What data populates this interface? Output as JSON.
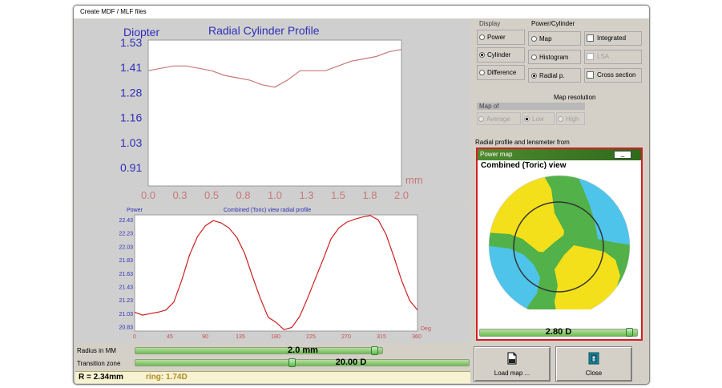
{
  "window": {
    "title": "Create MDF / MLF files"
  },
  "top_chart": {
    "ylabel": "Diopter",
    "title": "Radial Cylinder Profile",
    "xunit": "mm",
    "yticks": [
      "1.53",
      "1.41",
      "1.28",
      "1.16",
      "1.03",
      "0.91"
    ],
    "xticks": [
      "0.0",
      "0.3",
      "0.5",
      "0.8",
      "1.0",
      "1.3",
      "1.5",
      "1.8",
      "2.0"
    ]
  },
  "bottom_chart": {
    "ylabel": "Power",
    "title": "Combined (Toric) view radial profile",
    "xunit": "Deg",
    "yticks": [
      "22.43",
      "22.23",
      "22.03",
      "21.83",
      "21.63",
      "21.43",
      "21.23",
      "21.03",
      "20.83"
    ],
    "xticks": [
      "0",
      "45",
      "90",
      "135",
      "180",
      "225",
      "270",
      "315",
      "360"
    ]
  },
  "chart_data": [
    {
      "type": "line",
      "title": "Radial Cylinder Profile",
      "xlabel": "mm",
      "ylabel": "Diopter",
      "xlim": [
        0.0,
        2.0
      ],
      "ylim": [
        0.91,
        1.53
      ],
      "x": [
        0.0,
        0.1,
        0.2,
        0.3,
        0.4,
        0.5,
        0.6,
        0.7,
        0.8,
        0.9,
        1.0,
        1.1,
        1.2,
        1.3,
        1.4,
        1.5,
        1.6,
        1.7,
        1.8,
        1.9,
        2.0
      ],
      "values": [
        1.4,
        1.41,
        1.42,
        1.42,
        1.41,
        1.4,
        1.38,
        1.37,
        1.36,
        1.34,
        1.33,
        1.36,
        1.4,
        1.4,
        1.4,
        1.42,
        1.44,
        1.45,
        1.46,
        1.48,
        1.49
      ],
      "line_color": "#c87878"
    },
    {
      "type": "line",
      "title": "Combined (Toric) view radial profile",
      "xlabel": "Deg",
      "ylabel": "Power",
      "xlim": [
        0,
        360
      ],
      "ylim": [
        20.83,
        22.43
      ],
      "x": [
        0,
        10,
        20,
        30,
        40,
        50,
        60,
        70,
        80,
        90,
        100,
        110,
        120,
        130,
        140,
        150,
        160,
        170,
        180,
        190,
        200,
        210,
        220,
        230,
        240,
        250,
        260,
        270,
        280,
        290,
        300,
        310,
        320,
        330,
        340,
        350,
        360
      ],
      "values": [
        21.09,
        21.05,
        21.07,
        21.09,
        21.12,
        21.23,
        21.53,
        21.88,
        22.13,
        22.28,
        22.35,
        22.32,
        22.25,
        22.12,
        21.9,
        21.58,
        21.28,
        21.02,
        20.95,
        20.85,
        20.88,
        21.03,
        21.28,
        21.55,
        21.82,
        22.1,
        22.25,
        22.33,
        22.37,
        22.4,
        22.42,
        22.36,
        22.16,
        21.85,
        21.52,
        21.25,
        21.12
      ],
      "line_color": "#cc2020"
    }
  ],
  "display": {
    "group_label": "Display",
    "options": [
      {
        "label": "Power",
        "selected": false
      },
      {
        "label": "Cylinder",
        "selected": true
      },
      {
        "label": "Difference",
        "selected": false
      }
    ]
  },
  "power_cylinder": {
    "group_label": "Power/Cylinder",
    "options": [
      {
        "label": "Map",
        "selected": false
      },
      {
        "label": "Histogram",
        "selected": false
      },
      {
        "label": "Radial p.",
        "selected": true
      }
    ],
    "checks": [
      {
        "label": "Integrated",
        "enabled": true
      },
      {
        "label": "LSA",
        "enabled": false
      },
      {
        "label": "Cross section",
        "enabled": true
      }
    ]
  },
  "map_resolution": {
    "label": "Map resolution",
    "map_of": "Map of",
    "options": [
      {
        "label": "Average",
        "selected": false
      },
      {
        "label": "Low",
        "selected": true
      },
      {
        "label": "High",
        "selected": false
      }
    ]
  },
  "radial_profile_label": "Radial profile and lensmeter from",
  "power_map": {
    "header": "Power map",
    "minimize": "_",
    "view_title": "Combined (Toric) view",
    "slider_value": "2.80 D",
    "slider_fraction": 0.97,
    "colors": {
      "yellow": "#f4e01a",
      "green": "#52b148",
      "blue": "#4fc4ea"
    }
  },
  "radius": {
    "label": "Radius in MM",
    "value": "2.0 mm",
    "fraction": 0.98
  },
  "transition": {
    "label": "Transition zone",
    "value": "20.00 D",
    "fraction": 0.47
  },
  "status": {
    "radius": "R = 2.34mm",
    "ring": "ring: 1.74D"
  },
  "buttons": {
    "load": "Load map ...",
    "close": "Close"
  }
}
